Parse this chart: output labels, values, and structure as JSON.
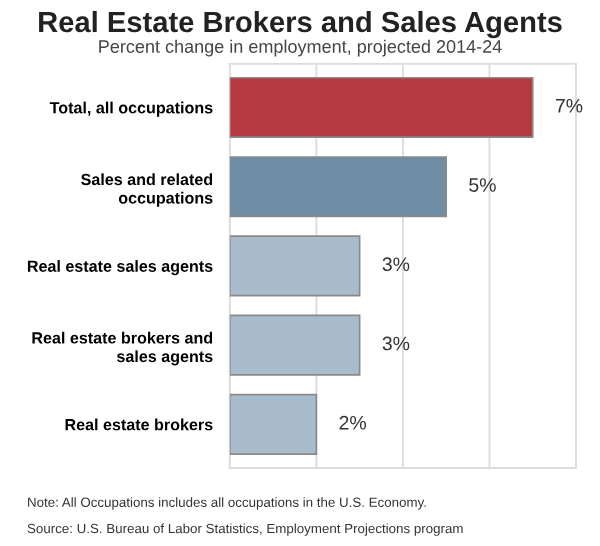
{
  "chart_data": {
    "type": "bar",
    "orientation": "horizontal",
    "title": "Real Estate Brokers and Sales Agents",
    "subtitle": "Percent change in employment, projected 2014-24",
    "categories": [
      "Total, all occupations",
      "Sales and related\noccupations",
      "Real estate sales agents",
      "Real estate brokers and\nsales agents",
      "Real estate brokers"
    ],
    "values": [
      7,
      5,
      3,
      3,
      2
    ],
    "colors": [
      "#b5393f",
      "#6e8ca3",
      "#a9bccb",
      "#a9bccb",
      "#a9bccb"
    ],
    "value_labels": [
      "7%",
      "5%",
      "3%",
      "3%",
      "2%"
    ],
    "xlim": [
      0,
      8
    ],
    "xticks": [
      {
        "value": 2,
        "label": null
      },
      {
        "value": 4,
        "label": null
      },
      {
        "value": 6,
        "label": null
      }
    ],
    "grid": "x",
    "tick_labels": "y",
    "annotations": [
      "Note: All Occupations includes all occupations in the U.S. Economy.",
      "Source: U.S. Bureau of Labor Statistics, Employment Projections program"
    ]
  }
}
